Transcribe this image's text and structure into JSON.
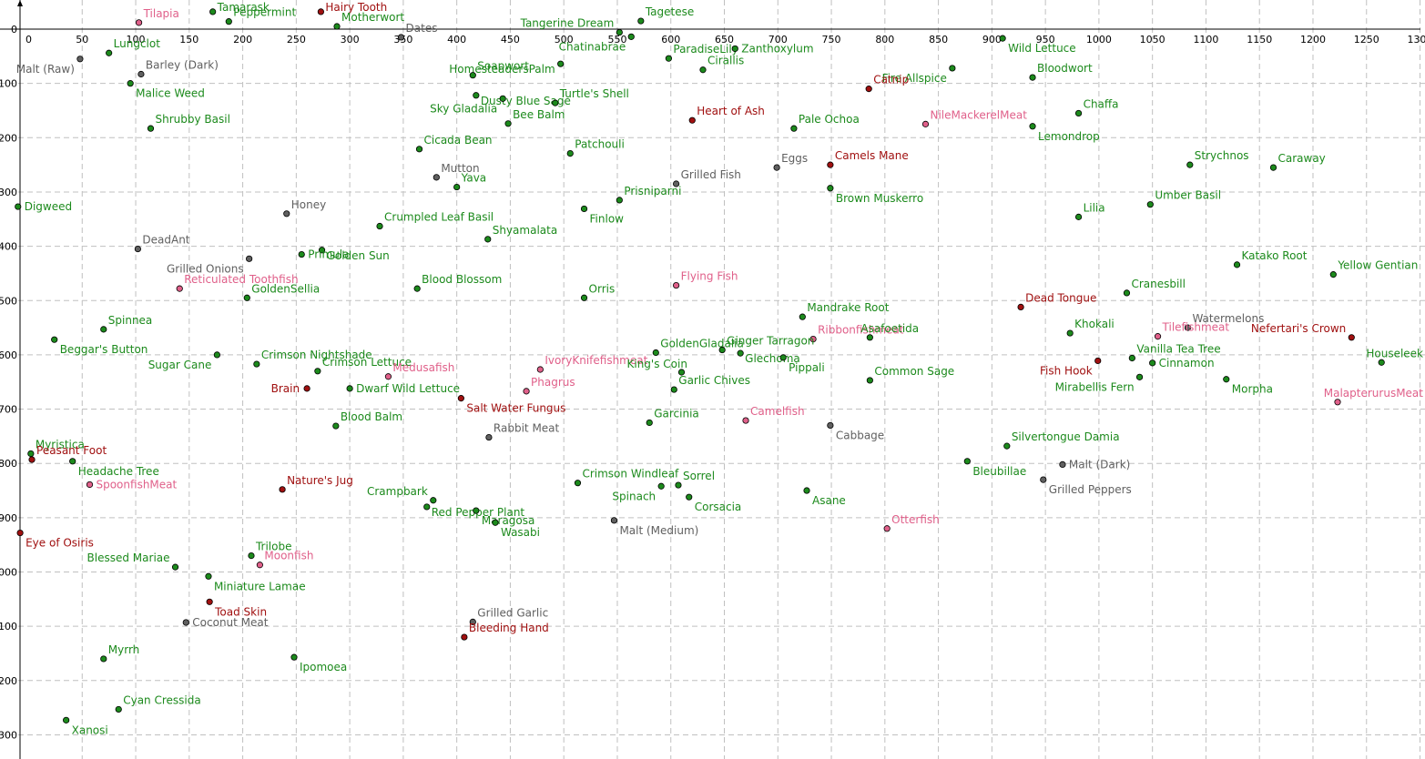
{
  "chart_data": {
    "type": "scatter",
    "xlim": [
      -10,
      1300
    ],
    "ylim": [
      -25,
      1340
    ],
    "y_axis_inverted": true,
    "grid": true,
    "x_ticks": [
      0,
      50,
      100,
      150,
      200,
      250,
      300,
      350,
      400,
      450,
      500,
      550,
      600,
      650,
      700,
      750,
      800,
      850,
      900,
      950,
      1000,
      1050,
      1100,
      1150,
      1200,
      1250,
      1300
    ],
    "y_ticks": [
      0,
      100,
      200,
      300,
      400,
      500,
      600,
      700,
      800,
      900,
      1000,
      1100,
      1200,
      1300
    ],
    "y_tick_labels": [
      "0",
      "100",
      "200",
      "300",
      "400",
      "500",
      "600",
      "700",
      "800",
      "900",
      "1000",
      "1100",
      "1200",
      "1300"
    ],
    "category_colors": {
      "herb": "#1c8a1c",
      "fish": "#e0608a",
      "other": "#606060",
      "animal": "#a01010"
    },
    "points": [
      {
        "name": "Tilapia",
        "cat": "fish",
        "x": 103,
        "y": -12,
        "lp": "ne"
      },
      {
        "name": "Tamarask",
        "cat": "herb",
        "x": 172,
        "y": -32,
        "lp": "ne"
      },
      {
        "name": "Peppermint",
        "cat": "herb",
        "x": 187,
        "y": -14,
        "lp": "ne"
      },
      {
        "name": "Hairy Tooth",
        "cat": "animal",
        "x": 273,
        "y": -32,
        "lp": "ne"
      },
      {
        "name": "Motherwort",
        "cat": "herb",
        "x": 288,
        "y": -5,
        "lp": "ne"
      },
      {
        "name": "Dates",
        "cat": "other",
        "x": 348,
        "y": 15,
        "lp": "ne"
      },
      {
        "name": "Tagetese",
        "cat": "herb",
        "x": 572,
        "y": -15,
        "lp": "ne"
      },
      {
        "name": "Tangerine Dream",
        "cat": "herb",
        "x": 552,
        "y": 6,
        "lp": "nw"
      },
      {
        "name": "Chatinabrae",
        "cat": "herb",
        "x": 563,
        "y": 14,
        "lp": "sw"
      },
      {
        "name": "HomesteadersPalm",
        "cat": "herb",
        "x": 497,
        "y": 64,
        "lp": "nw2"
      },
      {
        "name": "ParadiseLily",
        "cat": "herb",
        "x": 598,
        "y": 54,
        "lp": "ne"
      },
      {
        "name": "Zanthoxylum",
        "cat": "herb",
        "x": 660,
        "y": 36,
        "lp": "e"
      },
      {
        "name": "Cirallis",
        "cat": "herb",
        "x": 630,
        "y": 75,
        "lp": "ne"
      },
      {
        "name": "Wild Lettuce",
        "cat": "herb",
        "x": 910,
        "y": 17,
        "lp": "se"
      },
      {
        "name": "Fire Allspice",
        "cat": "herb",
        "x": 863,
        "y": 72,
        "lp": "sw"
      },
      {
        "name": "Bloodwort",
        "cat": "herb",
        "x": 938,
        "y": 89,
        "lp": "ne"
      },
      {
        "name": "Lungclot",
        "cat": "herb",
        "x": 75,
        "y": 44,
        "lp": "ne"
      },
      {
        "name": "Malt (Raw)",
        "cat": "other",
        "x": 48,
        "y": 55,
        "lp": "sw"
      },
      {
        "name": "Barley (Dark)",
        "cat": "other",
        "x": 105,
        "y": 83,
        "lp": "ne"
      },
      {
        "name": "Malice Weed",
        "cat": "herb",
        "x": 95,
        "y": 100,
        "lp": "se"
      },
      {
        "name": "Soapwort",
        "cat": "herb",
        "x": 415,
        "y": 85,
        "lp": "ne"
      },
      {
        "name": "Dusty Blue Sage",
        "cat": "herb",
        "x": 418,
        "y": 122,
        "lp": "ne2"
      },
      {
        "name": "Sky Gladalia",
        "cat": "herb",
        "x": 443,
        "y": 128,
        "lp": "sw"
      },
      {
        "name": "Turtle's Shell",
        "cat": "herb",
        "x": 492,
        "y": 136,
        "lp": "ne"
      },
      {
        "name": "Bee Balm",
        "cat": "herb",
        "x": 448,
        "y": 174,
        "lp": "ne"
      },
      {
        "name": "Catnip",
        "cat": "animal",
        "x": 785,
        "y": 110,
        "lp": "ne"
      },
      {
        "name": "Heart of Ash",
        "cat": "animal",
        "x": 620,
        "y": 168,
        "lp": "ne"
      },
      {
        "name": "Pale Ochoa",
        "cat": "herb",
        "x": 715,
        "y": 183,
        "lp": "ne"
      },
      {
        "name": "NileMackerelMeat",
        "cat": "fish",
        "x": 838,
        "y": 175,
        "lp": "ne"
      },
      {
        "name": "Chaffa",
        "cat": "herb",
        "x": 981,
        "y": 155,
        "lp": "ne"
      },
      {
        "name": "Lemondrop",
        "cat": "herb",
        "x": 938,
        "y": 179,
        "lp": "se"
      },
      {
        "name": "Shrubby Basil",
        "cat": "herb",
        "x": 114,
        "y": 183,
        "lp": "ne"
      },
      {
        "name": "Cicada Bean",
        "cat": "herb",
        "x": 365,
        "y": 221,
        "lp": "ne"
      },
      {
        "name": "Patchouli",
        "cat": "herb",
        "x": 506,
        "y": 229,
        "lp": "ne"
      },
      {
        "name": "Eggs",
        "cat": "other",
        "x": 699,
        "y": 255,
        "lp": "ne"
      },
      {
        "name": "Camels Mane",
        "cat": "animal",
        "x": 749,
        "y": 250,
        "lp": "ne"
      },
      {
        "name": "Strychnos",
        "cat": "herb",
        "x": 1085,
        "y": 250,
        "lp": "ne"
      },
      {
        "name": "Caraway",
        "cat": "herb",
        "x": 1163,
        "y": 255,
        "lp": "ne"
      },
      {
        "name": "Mutton",
        "cat": "other",
        "x": 381,
        "y": 273,
        "lp": "ne"
      },
      {
        "name": "Yava",
        "cat": "herb",
        "x": 400,
        "y": 291,
        "lp": "ne"
      },
      {
        "name": "Grilled Fish",
        "cat": "other",
        "x": 605,
        "y": 285,
        "lp": "ne"
      },
      {
        "name": "Brown Muskerro",
        "cat": "herb",
        "x": 749,
        "y": 293,
        "lp": "se"
      },
      {
        "name": "Prisniparni",
        "cat": "herb",
        "x": 552,
        "y": 315,
        "lp": "ne"
      },
      {
        "name": "Finlow",
        "cat": "herb",
        "x": 519,
        "y": 331,
        "lp": "se"
      },
      {
        "name": "Umber Basil",
        "cat": "herb",
        "x": 1048,
        "y": 323,
        "lp": "ne"
      },
      {
        "name": "Lilia",
        "cat": "herb",
        "x": 981,
        "y": 346,
        "lp": "ne"
      },
      {
        "name": "Digweed",
        "cat": "herb",
        "x": -10,
        "y": 327,
        "lp": "e"
      },
      {
        "name": "Honey",
        "cat": "other",
        "x": 241,
        "y": 340,
        "lp": "ne"
      },
      {
        "name": "Crumpled Leaf Basil",
        "cat": "herb",
        "x": 328,
        "y": 363,
        "lp": "ne"
      },
      {
        "name": "Shyamalata",
        "cat": "herb",
        "x": 429,
        "y": 387,
        "lp": "ne"
      },
      {
        "name": "Golden Sun",
        "cat": "herb",
        "x": 274,
        "y": 407,
        "lp": "ne2"
      },
      {
        "name": "Primula",
        "cat": "herb",
        "x": 255,
        "y": 415,
        "lp": "e"
      },
      {
        "name": "DeadAnt",
        "cat": "other",
        "x": 102,
        "y": 405,
        "lp": "ne"
      },
      {
        "name": "Grilled Onions",
        "cat": "other",
        "x": 206,
        "y": 423,
        "lp": "sw"
      },
      {
        "name": "Reticulated Toothfish",
        "cat": "fish",
        "x": 141,
        "y": 478,
        "lp": "ne"
      },
      {
        "name": "Blood Blossom",
        "cat": "herb",
        "x": 363,
        "y": 478,
        "lp": "ne"
      },
      {
        "name": "Flying Fish",
        "cat": "fish",
        "x": 605,
        "y": 472,
        "lp": "ne"
      },
      {
        "name": "Katako Root",
        "cat": "herb",
        "x": 1129,
        "y": 434,
        "lp": "ne"
      },
      {
        "name": "Yellow Gentian",
        "cat": "herb",
        "x": 1219,
        "y": 452,
        "lp": "ne"
      },
      {
        "name": "Cranesbill",
        "cat": "herb",
        "x": 1026,
        "y": 486,
        "lp": "ne"
      },
      {
        "name": "GoldenSellia",
        "cat": "herb",
        "x": 204,
        "y": 495,
        "lp": "ne"
      },
      {
        "name": "Orris",
        "cat": "herb",
        "x": 519,
        "y": 495,
        "lp": "ne"
      },
      {
        "name": "Dead Tongue",
        "cat": "animal",
        "x": 927,
        "y": 512,
        "lp": "ne"
      },
      {
        "name": "Mandrake Root",
        "cat": "herb",
        "x": 723,
        "y": 530,
        "lp": "ne"
      },
      {
        "name": "Spinnea",
        "cat": "herb",
        "x": 70,
        "y": 553,
        "lp": "ne"
      },
      {
        "name": "Beggar's Button",
        "cat": "herb",
        "x": 24,
        "y": 572,
        "lp": "se"
      },
      {
        "name": "Ribbonfishmeat",
        "cat": "fish",
        "x": 733,
        "y": 571,
        "lp": "ne"
      },
      {
        "name": "Asafoetida",
        "cat": "herb",
        "x": 786,
        "y": 568,
        "lp": "nw3"
      },
      {
        "name": "Khokali",
        "cat": "herb",
        "x": 973,
        "y": 560,
        "lp": "ne"
      },
      {
        "name": "Watermelons",
        "cat": "other",
        "x": 1083,
        "y": 550,
        "lp": "ne"
      },
      {
        "name": "Tilefishmeat",
        "cat": "fish",
        "x": 1055,
        "y": 566,
        "lp": "ne"
      },
      {
        "name": "Nefertari's Crown",
        "cat": "animal",
        "x": 1236,
        "y": 568,
        "lp": "nw"
      },
      {
        "name": "Houseleek",
        "cat": "herb",
        "x": 1264,
        "y": 614,
        "lp": "ne"
      },
      {
        "name": "Crimson Nightshade",
        "cat": "herb",
        "x": 213,
        "y": 617,
        "lp": "ne"
      },
      {
        "name": "Sugar Cane",
        "cat": "herb",
        "x": 176,
        "y": 600,
        "lp": "sw"
      },
      {
        "name": "GoldenGladalia",
        "cat": "herb",
        "x": 586,
        "y": 596,
        "lp": "ne"
      },
      {
        "name": "Ginger Tarragon",
        "cat": "herb",
        "x": 648,
        "y": 591,
        "lp": "ne"
      },
      {
        "name": "Glechoma",
        "cat": "herb",
        "x": 665,
        "y": 597,
        "lp": "ne2"
      },
      {
        "name": "Pippali",
        "cat": "herb",
        "x": 705,
        "y": 605,
        "lp": "se"
      },
      {
        "name": "Vanilla Tea Tree",
        "cat": "herb",
        "x": 1031,
        "y": 606,
        "lp": "ne"
      },
      {
        "name": "Cinnamon",
        "cat": "herb",
        "x": 1050,
        "y": 615,
        "lp": "e"
      },
      {
        "name": "Fish Hook",
        "cat": "animal",
        "x": 999,
        "y": 611,
        "lp": "sw"
      },
      {
        "name": "Mirabellis Fern",
        "cat": "herb",
        "x": 1038,
        "y": 641,
        "lp": "sw"
      },
      {
        "name": "Morpha",
        "cat": "herb",
        "x": 1119,
        "y": 645,
        "lp": "se"
      },
      {
        "name": "MalapterurusMeat",
        "cat": "fish",
        "x": 1223,
        "y": 687,
        "lp": "ne"
      },
      {
        "name": "Crimson Lettuce",
        "cat": "herb",
        "x": 270,
        "y": 630,
        "lp": "ne"
      },
      {
        "name": "IvoryKnifefishmeat",
        "cat": "fish",
        "x": 478,
        "y": 627,
        "lp": "ne"
      },
      {
        "name": "King's Coin",
        "cat": "herb",
        "x": 610,
        "y": 632,
        "lp": "nw4"
      },
      {
        "name": "Medusafish",
        "cat": "fish",
        "x": 336,
        "y": 640,
        "lp": "ne"
      },
      {
        "name": "Brain",
        "cat": "animal",
        "x": 260,
        "y": 662,
        "lp": "w"
      },
      {
        "name": "Dwarf Wild Lettuce",
        "cat": "herb",
        "x": 300,
        "y": 662,
        "lp": "e"
      },
      {
        "name": "Garlic Chives",
        "cat": "herb",
        "x": 603,
        "y": 664,
        "lp": "ne"
      },
      {
        "name": "Phagrus",
        "cat": "fish",
        "x": 465,
        "y": 667,
        "lp": "ne"
      },
      {
        "name": "Common Sage",
        "cat": "herb",
        "x": 786,
        "y": 647,
        "lp": "ne"
      },
      {
        "name": "Salt Water Fungus",
        "cat": "animal",
        "x": 404,
        "y": 680,
        "lp": "se"
      },
      {
        "name": "Blood Balm",
        "cat": "herb",
        "x": 287,
        "y": 731,
        "lp": "ne"
      },
      {
        "name": "Garcinia",
        "cat": "herb",
        "x": 580,
        "y": 725,
        "lp": "ne"
      },
      {
        "name": "Camelfish",
        "cat": "fish",
        "x": 670,
        "y": 721,
        "lp": "ne"
      },
      {
        "name": "Cabbage",
        "cat": "other",
        "x": 749,
        "y": 730,
        "lp": "se"
      },
      {
        "name": "Rabbit Meat",
        "cat": "other",
        "x": 430,
        "y": 752,
        "lp": "ne"
      },
      {
        "name": "Myristica",
        "cat": "herb",
        "x": 2,
        "y": 782,
        "lp": "ne"
      },
      {
        "name": "Peasant Foot",
        "cat": "animal",
        "x": 3,
        "y": 793,
        "lp": "ne"
      },
      {
        "name": "Headache Tree",
        "cat": "herb",
        "x": 41,
        "y": 796,
        "lp": "se"
      },
      {
        "name": "SpoonfishMeat",
        "cat": "fish",
        "x": 57,
        "y": 839,
        "lp": "e"
      },
      {
        "name": "Silvertongue Damia",
        "cat": "herb",
        "x": 914,
        "y": 768,
        "lp": "ne"
      },
      {
        "name": "Bleubillae",
        "cat": "herb",
        "x": 877,
        "y": 796,
        "lp": "se"
      },
      {
        "name": "Malt (Dark)",
        "cat": "other",
        "x": 966,
        "y": 802,
        "lp": "e"
      },
      {
        "name": "Grilled Peppers",
        "cat": "other",
        "x": 948,
        "y": 830,
        "lp": "se"
      },
      {
        "name": "Crimson Windleaf",
        "cat": "herb",
        "x": 513,
        "y": 836,
        "lp": "ne"
      },
      {
        "name": "Spinach",
        "cat": "herb",
        "x": 591,
        "y": 842,
        "lp": "sw"
      },
      {
        "name": "Sorrel",
        "cat": "herb",
        "x": 607,
        "y": 840,
        "lp": "ne"
      },
      {
        "name": "Corsacia",
        "cat": "herb",
        "x": 617,
        "y": 862,
        "lp": "se"
      },
      {
        "name": "Asane",
        "cat": "herb",
        "x": 727,
        "y": 850,
        "lp": "se"
      },
      {
        "name": "Nature's Jug",
        "cat": "animal",
        "x": 237,
        "y": 848,
        "lp": "ne"
      },
      {
        "name": "Crampbark",
        "cat": "herb",
        "x": 378,
        "y": 868,
        "lp": "nw"
      },
      {
        "name": "Red Pepper Plant",
        "cat": "herb",
        "x": 372,
        "y": 880,
        "lp": "ne2"
      },
      {
        "name": "Maragosa",
        "cat": "herb",
        "x": 418,
        "y": 887,
        "lp": "se"
      },
      {
        "name": "Wasabi",
        "cat": "herb",
        "x": 436,
        "y": 909,
        "lp": "se"
      },
      {
        "name": "Malt (Medium)",
        "cat": "other",
        "x": 547,
        "y": 905,
        "lp": "se"
      },
      {
        "name": "Otterfish",
        "cat": "fish",
        "x": 802,
        "y": 920,
        "lp": "ne"
      },
      {
        "name": "Eye of Osiris",
        "cat": "animal",
        "x": -8,
        "y": 928,
        "lp": "se"
      },
      {
        "name": "Trilobe",
        "cat": "herb",
        "x": 208,
        "y": 970,
        "lp": "ne"
      },
      {
        "name": "Moonfish",
        "cat": "fish",
        "x": 216,
        "y": 987,
        "lp": "ne"
      },
      {
        "name": "Blessed Mariae",
        "cat": "herb",
        "x": 137,
        "y": 991,
        "lp": "nw"
      },
      {
        "name": "Miniature Lamae",
        "cat": "herb",
        "x": 168,
        "y": 1008,
        "lp": "se"
      },
      {
        "name": "Toad Skin",
        "cat": "animal",
        "x": 169,
        "y": 1055,
        "lp": "se"
      },
      {
        "name": "Coconut Meat",
        "cat": "other",
        "x": 147,
        "y": 1093,
        "lp": "e"
      },
      {
        "name": "Grilled Garlic",
        "cat": "other",
        "x": 415,
        "y": 1092,
        "lp": "ne"
      },
      {
        "name": "Bleeding Hand",
        "cat": "animal",
        "x": 407,
        "y": 1120,
        "lp": "ne"
      },
      {
        "name": "Myrrh",
        "cat": "herb",
        "x": 70,
        "y": 1160,
        "lp": "ne"
      },
      {
        "name": "Ipomoea",
        "cat": "herb",
        "x": 248,
        "y": 1157,
        "lp": "se"
      },
      {
        "name": "Cyan Cressida",
        "cat": "herb",
        "x": 84,
        "y": 1253,
        "lp": "ne"
      },
      {
        "name": "Xanosi",
        "cat": "herb",
        "x": 35,
        "y": 1273,
        "lp": "se"
      }
    ]
  }
}
